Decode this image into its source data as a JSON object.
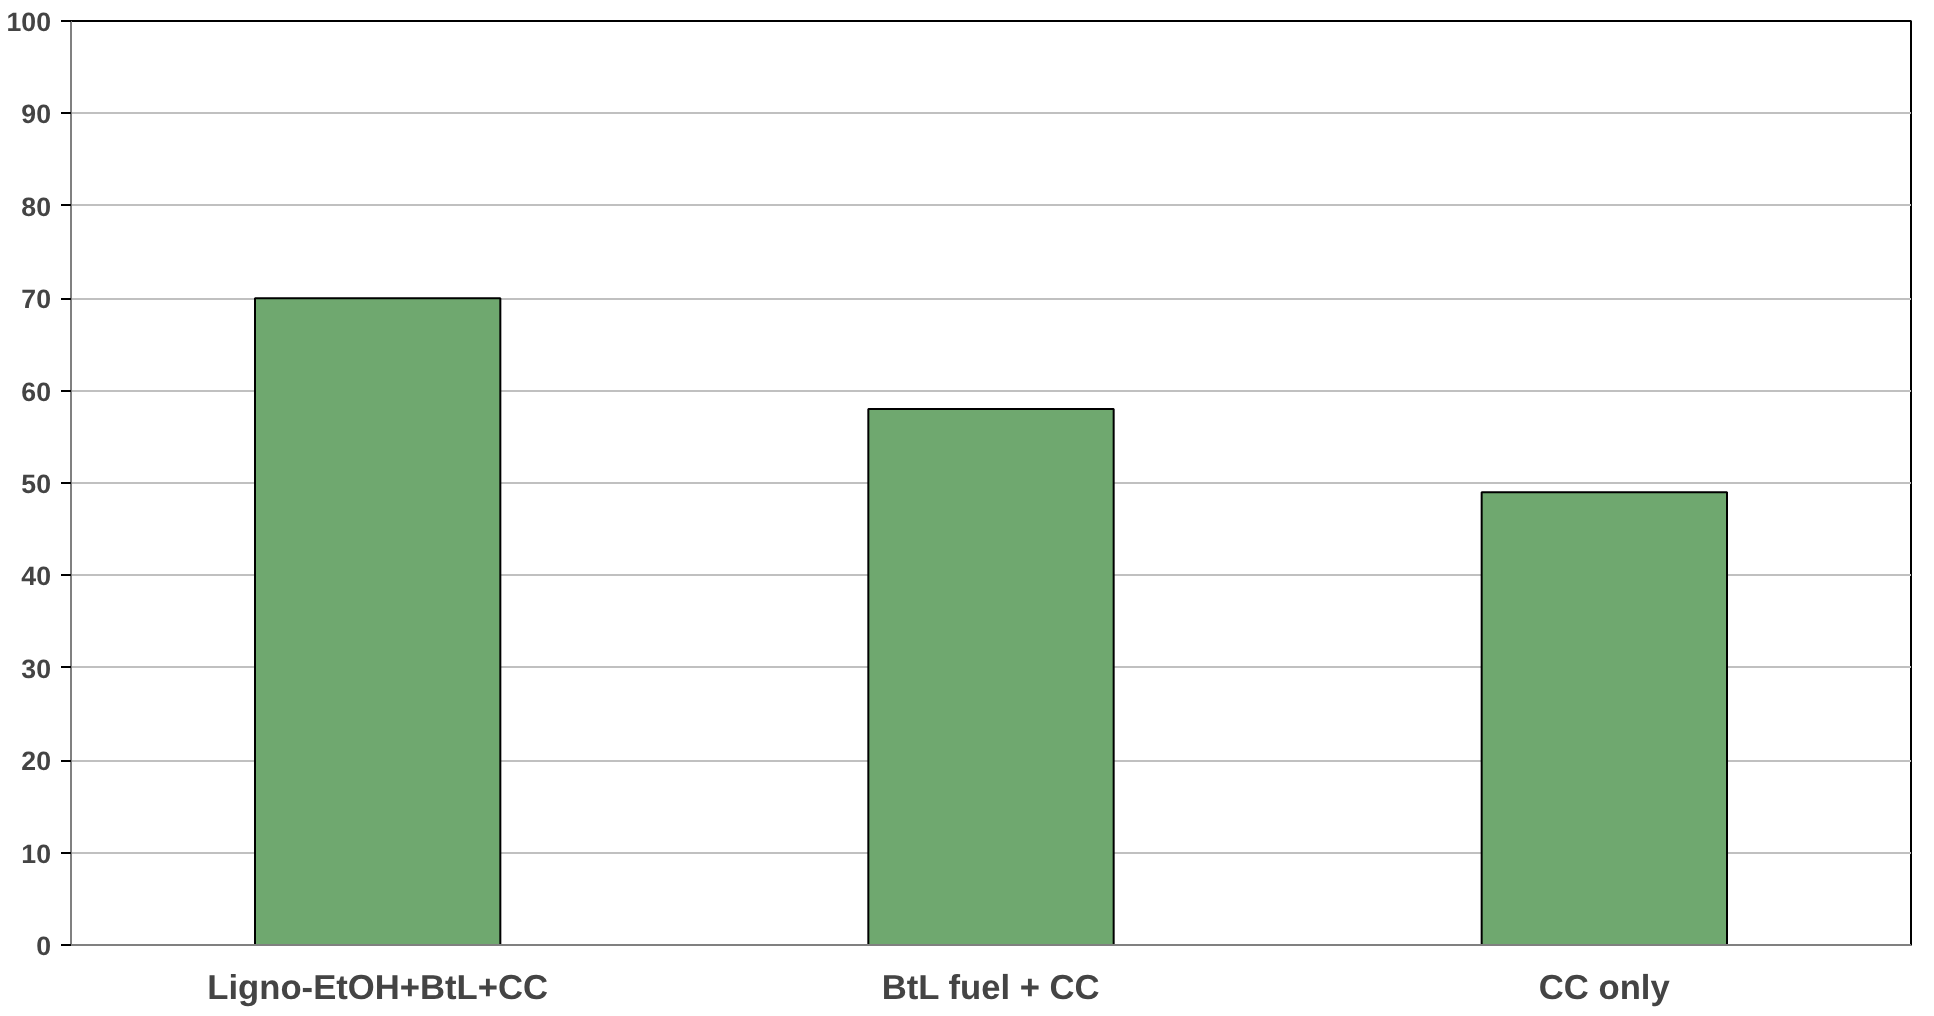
{
  "chart_data": {
    "type": "bar",
    "categories": [
      "Ligno-EtOH+BtL+CC",
      "BtL fuel + CC",
      "CC only"
    ],
    "values": [
      70,
      58,
      49
    ],
    "color": "#6fa86f",
    "ylim": [
      0,
      100
    ],
    "yticks": [
      0,
      10,
      20,
      30,
      40,
      50,
      60,
      70,
      80,
      90,
      100
    ],
    "grid": "y"
  }
}
